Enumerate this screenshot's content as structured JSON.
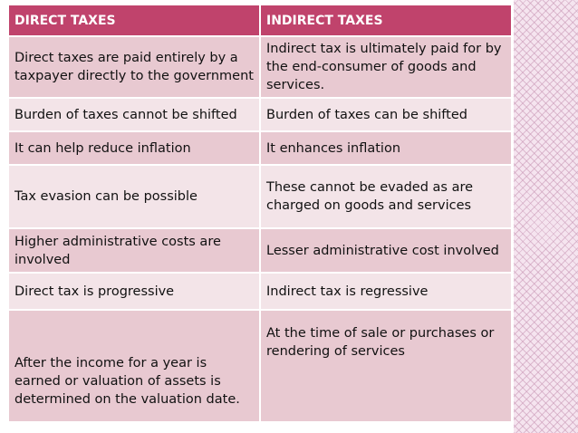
{
  "headers": [
    "DIRECT TAXES",
    "INDIRECT TAXES"
  ],
  "rows": [
    {
      "direct": "Direct taxes are paid entirely by a taxpayer directly to the government",
      "indirect": "Indirect tax is ultimately paid for by the end-consumer of goods and services."
    },
    {
      "direct": "Burden of taxes cannot be shifted",
      "indirect": "Burden of taxes can be shifted"
    },
    {
      "direct": "It can help reduce inflation",
      "indirect": "It enhances inflation"
    },
    {
      "direct": "Tax evasion can be possible",
      "indirect": "These cannot be evaded as are charged on goods and services"
    },
    {
      "direct": "Higher administrative costs are involved",
      "indirect": "Lesser administrative cost involved"
    },
    {
      "direct": "Direct tax is progressive",
      "indirect": "Indirect tax is regressive"
    },
    {
      "direct": "After the income for a year is earned or valuation of assets is determined on the valuation date.",
      "indirect": "At the time of sale or purchases or rendering of services"
    }
  ],
  "colors": {
    "header": "#c0436c",
    "row_dark": "#e8c9d1",
    "row_light": "#f3e4e8"
  }
}
